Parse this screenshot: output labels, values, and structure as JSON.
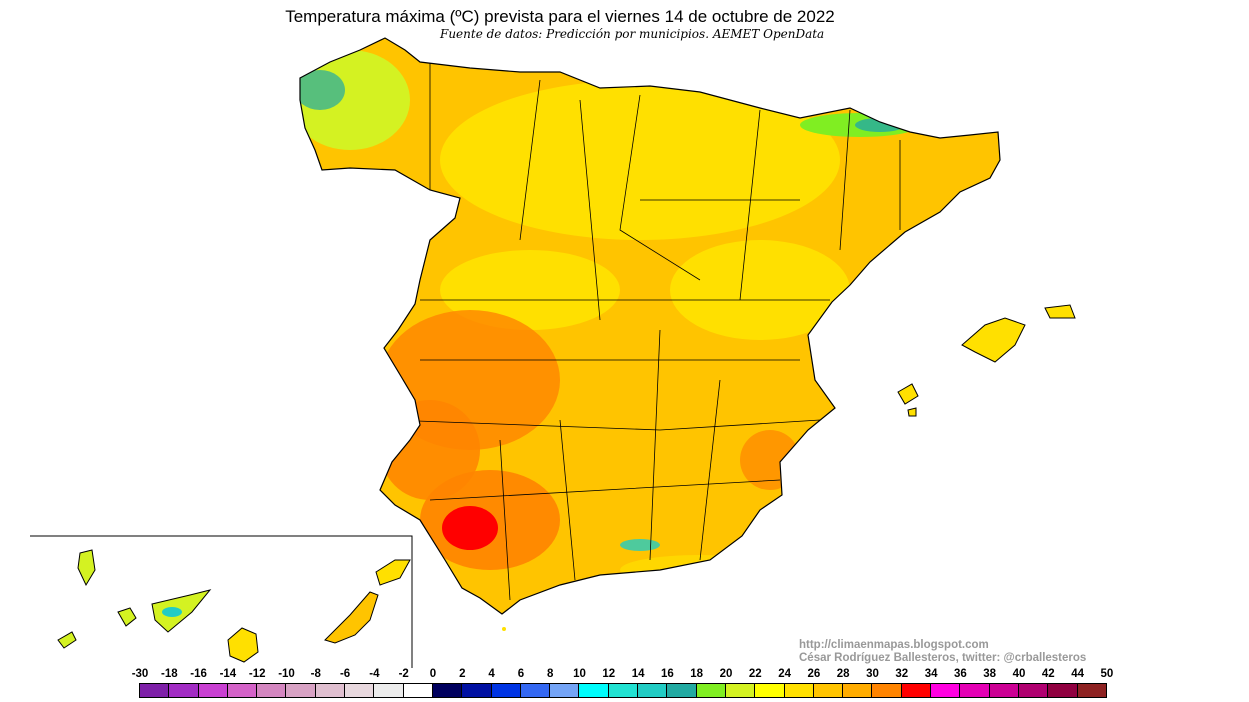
{
  "header": {
    "title": "Temperatura máxima (ºC) prevista para el viernes 14 de octubre de 2022",
    "subtitle": "Fuente de datos: Predicción por municipios. AEMET OpenData"
  },
  "credits": {
    "url": "http://climaenmapas.blogspot.com",
    "author": "César Rodríguez Ballesteros, twitter: @crballesteros"
  },
  "map": {
    "variable": "maximum temperature",
    "units": "ºC",
    "regions": [
      "Peninsular Spain",
      "Balearic Islands",
      "Canary Islands (inset)"
    ]
  },
  "legend": {
    "labels": [
      "-30",
      "-18",
      "-16",
      "-14",
      "-12",
      "-10",
      "-8",
      "-6",
      "-4",
      "-2",
      "0",
      "2",
      "4",
      "6",
      "8",
      "10",
      "12",
      "14",
      "16",
      "18",
      "20",
      "22",
      "24",
      "26",
      "28",
      "30",
      "32",
      "34",
      "36",
      "38",
      "40",
      "42",
      "44",
      "50"
    ],
    "colors": [
      "#7e1fa8",
      "#a22cc4",
      "#c940d2",
      "#d462c8",
      "#d486c0",
      "#d8a2c4",
      "#e0bfd0",
      "#e8d8de",
      "#ececec",
      "#ffffff",
      "#00005e",
      "#0010a2",
      "#0034e4",
      "#3468f2",
      "#74a4f6",
      "#00fcfc",
      "#22e2d2",
      "#22ccc4",
      "#22aaa2",
      "#80ee22",
      "#d4f222",
      "#ffff00",
      "#ffe000",
      "#ffc400",
      "#ffac00",
      "#ff8400",
      "#ff0000",
      "#ff00e0",
      "#e400b4",
      "#cc0094",
      "#b00070",
      "#900040",
      "#8e2222"
    ]
  }
}
